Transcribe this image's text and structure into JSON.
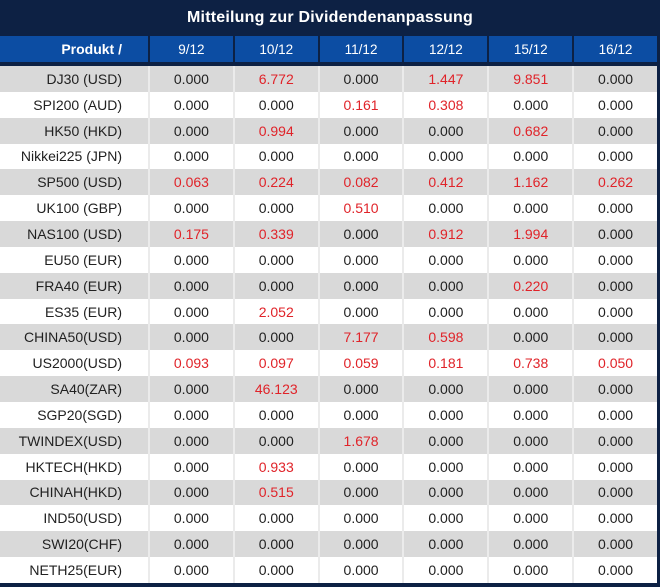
{
  "title": "Mitteilung zur Dividendenanpassung",
  "colors": {
    "navy": "#0d2144",
    "header_blue": "#0c4da3",
    "row_gray": "#d9d9d9",
    "row_white": "#ffffff",
    "separator": "#ebebeb",
    "value_black": "#212121",
    "value_red": "#e02329",
    "header_text": "#ffffff"
  },
  "table": {
    "product_header": "Produkt /",
    "date_headers": [
      "9/12",
      "10/12",
      "11/12",
      "12/12",
      "15/12",
      "16/12"
    ],
    "rows": [
      {
        "product": "DJ30 (USD)",
        "values": [
          "0.000",
          "6.772",
          "0.000",
          "1.447",
          "9.851",
          "0.000"
        ],
        "red": [
          0,
          1,
          0,
          1,
          1,
          0
        ]
      },
      {
        "product": "SPI200 (AUD)",
        "values": [
          "0.000",
          "0.000",
          "0.161",
          "0.308",
          "0.000",
          "0.000"
        ],
        "red": [
          0,
          0,
          1,
          1,
          0,
          0
        ]
      },
      {
        "product": "HK50 (HKD)",
        "values": [
          "0.000",
          "0.994",
          "0.000",
          "0.000",
          "0.682",
          "0.000"
        ],
        "red": [
          0,
          1,
          0,
          0,
          1,
          0
        ]
      },
      {
        "product": "Nikkei225 (JPN)",
        "values": [
          "0.000",
          "0.000",
          "0.000",
          "0.000",
          "0.000",
          "0.000"
        ],
        "red": [
          0,
          0,
          0,
          0,
          0,
          0
        ]
      },
      {
        "product": "SP500 (USD)",
        "values": [
          "0.063",
          "0.224",
          "0.082",
          "0.412",
          "1.162",
          "0.262"
        ],
        "red": [
          1,
          1,
          1,
          1,
          1,
          1
        ]
      },
      {
        "product": "UK100 (GBP)",
        "values": [
          "0.000",
          "0.000",
          "0.510",
          "0.000",
          "0.000",
          "0.000"
        ],
        "red": [
          0,
          0,
          1,
          0,
          0,
          0
        ]
      },
      {
        "product": "NAS100 (USD)",
        "values": [
          "0.175",
          "0.339",
          "0.000",
          "0.912",
          "1.994",
          "0.000"
        ],
        "red": [
          1,
          1,
          0,
          1,
          1,
          0
        ]
      },
      {
        "product": "EU50 (EUR)",
        "values": [
          "0.000",
          "0.000",
          "0.000",
          "0.000",
          "0.000",
          "0.000"
        ],
        "red": [
          0,
          0,
          0,
          0,
          0,
          0
        ]
      },
      {
        "product": "FRA40 (EUR)",
        "values": [
          "0.000",
          "0.000",
          "0.000",
          "0.000",
          "0.220",
          "0.000"
        ],
        "red": [
          0,
          0,
          0,
          0,
          1,
          0
        ]
      },
      {
        "product": "ES35 (EUR)",
        "values": [
          "0.000",
          "2.052",
          "0.000",
          "0.000",
          "0.000",
          "0.000"
        ],
        "red": [
          0,
          1,
          0,
          0,
          0,
          0
        ]
      },
      {
        "product": "CHINA50(USD)",
        "values": [
          "0.000",
          "0.000",
          "7.177",
          "0.598",
          "0.000",
          "0.000"
        ],
        "red": [
          0,
          0,
          1,
          1,
          0,
          0
        ]
      },
      {
        "product": "US2000(USD)",
        "values": [
          "0.093",
          "0.097",
          "0.059",
          "0.181",
          "0.738",
          "0.050"
        ],
        "red": [
          1,
          1,
          1,
          1,
          1,
          1
        ]
      },
      {
        "product": "SA40(ZAR)",
        "values": [
          "0.000",
          "46.123",
          "0.000",
          "0.000",
          "0.000",
          "0.000"
        ],
        "red": [
          0,
          1,
          0,
          0,
          0,
          0
        ]
      },
      {
        "product": "SGP20(SGD)",
        "values": [
          "0.000",
          "0.000",
          "0.000",
          "0.000",
          "0.000",
          "0.000"
        ],
        "red": [
          0,
          0,
          0,
          0,
          0,
          0
        ]
      },
      {
        "product": "TWINDEX(USD)",
        "values": [
          "0.000",
          "0.000",
          "1.678",
          "0.000",
          "0.000",
          "0.000"
        ],
        "red": [
          0,
          0,
          1,
          0,
          0,
          0
        ]
      },
      {
        "product": "HKTECH(HKD)",
        "values": [
          "0.000",
          "0.933",
          "0.000",
          "0.000",
          "0.000",
          "0.000"
        ],
        "red": [
          0,
          1,
          0,
          0,
          0,
          0
        ]
      },
      {
        "product": "CHINAH(HKD)",
        "values": [
          "0.000",
          "0.515",
          "0.000",
          "0.000",
          "0.000",
          "0.000"
        ],
        "red": [
          0,
          1,
          0,
          0,
          0,
          0
        ]
      },
      {
        "product": "IND50(USD)",
        "values": [
          "0.000",
          "0.000",
          "0.000",
          "0.000",
          "0.000",
          "0.000"
        ],
        "red": [
          0,
          0,
          0,
          0,
          0,
          0
        ]
      },
      {
        "product": "SWI20(CHF)",
        "values": [
          "0.000",
          "0.000",
          "0.000",
          "0.000",
          "0.000",
          "0.000"
        ],
        "red": [
          0,
          0,
          0,
          0,
          0,
          0
        ]
      },
      {
        "product": "NETH25(EUR)",
        "values": [
          "0.000",
          "0.000",
          "0.000",
          "0.000",
          "0.000",
          "0.000"
        ],
        "red": [
          0,
          0,
          0,
          0,
          0,
          0
        ]
      }
    ]
  }
}
